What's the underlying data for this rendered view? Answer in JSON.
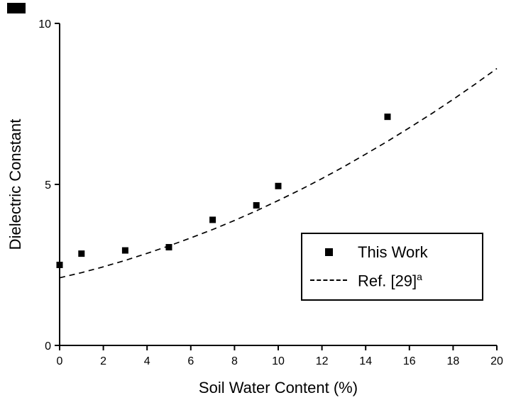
{
  "chart_data": {
    "type": "scatter",
    "title": "",
    "xlabel": "Soil Water Content (%)",
    "ylabel": "Dielectric Constant",
    "xlim": [
      0,
      20
    ],
    "ylim": [
      0,
      10
    ],
    "x_ticks": [
      0,
      2,
      4,
      6,
      8,
      10,
      12,
      14,
      16,
      18,
      20
    ],
    "y_ticks": [
      0,
      5,
      10
    ],
    "grid": false,
    "legend_position": "lower-right",
    "series": [
      {
        "name": "This Work",
        "type": "scatter",
        "marker": "square",
        "color": "#000000",
        "points": [
          [
            0,
            2.5
          ],
          [
            1,
            2.85
          ],
          [
            3,
            2.95
          ],
          [
            5,
            3.05
          ],
          [
            7,
            3.9
          ],
          [
            9,
            4.35
          ],
          [
            10,
            4.95
          ],
          [
            15,
            7.1
          ]
        ]
      },
      {
        "name": "Ref. [29]a",
        "type": "line",
        "style": "dashed",
        "color": "#000000",
        "points": [
          [
            0,
            2.1
          ],
          [
            1,
            2.26
          ],
          [
            2,
            2.44
          ],
          [
            3,
            2.64
          ],
          [
            4,
            2.86
          ],
          [
            5,
            3.09
          ],
          [
            6,
            3.34
          ],
          [
            7,
            3.6
          ],
          [
            8,
            3.88
          ],
          [
            9,
            4.18
          ],
          [
            10,
            4.5
          ],
          [
            11,
            4.83
          ],
          [
            12,
            5.18
          ],
          [
            13,
            5.55
          ],
          [
            14,
            5.94
          ],
          [
            15,
            6.34
          ],
          [
            16,
            6.76
          ],
          [
            17,
            7.19
          ],
          [
            18,
            7.64
          ],
          [
            19,
            8.11
          ],
          [
            20,
            8.6
          ]
        ]
      }
    ],
    "legend": {
      "items": [
        {
          "label": "This Work",
          "marker": "square"
        },
        {
          "label": "Ref. [29]",
          "sup": "a",
          "marker": "dashed-line"
        }
      ]
    }
  },
  "colors": {
    "axis": "#000000",
    "background": "#ffffff",
    "marker": "#000000"
  }
}
